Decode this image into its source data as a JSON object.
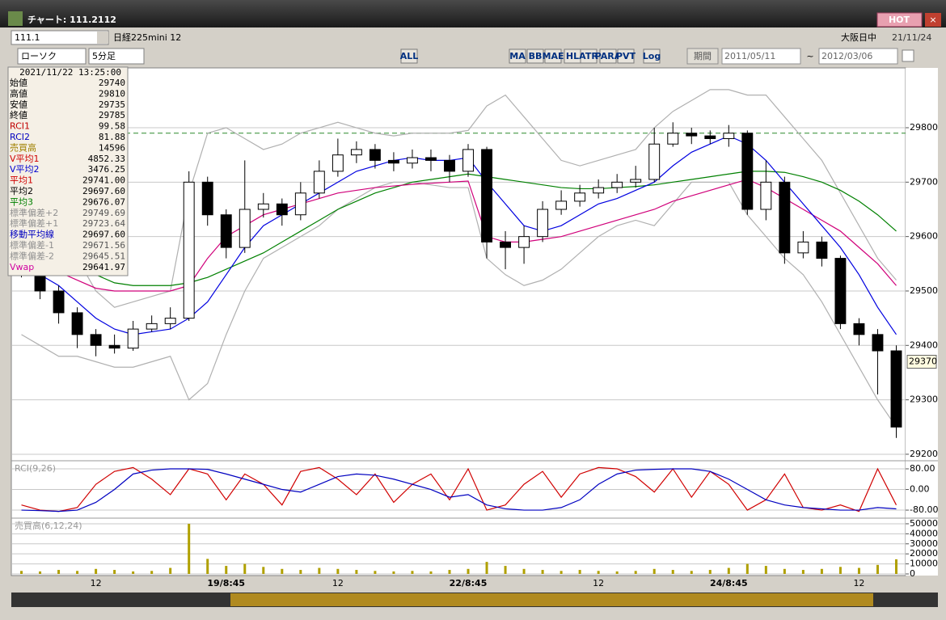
{
  "window": {
    "title": "チャート: 111.2112",
    "hot": "HOT",
    "symbol_code": "111.1",
    "symbol_name": "日経225mini 12",
    "market": "大阪日中",
    "date": "21/11/24"
  },
  "toolbar": {
    "chart_style": "ローソク",
    "interval": "5分足",
    "indicator_buttons": [
      "ALL",
      "MA",
      "BB",
      "MAE",
      "HL",
      "ATR",
      "PARA",
      "PVT",
      "Log"
    ],
    "period_label": "期間",
    "start_date": "2011/05/11",
    "separator": "~",
    "end_date": "2012/03/06"
  },
  "info_panel": {
    "timestamp": "2021/11/22 13:25:00",
    "rows": [
      {
        "label": "始値",
        "value": "29740",
        "color": "#000000"
      },
      {
        "label": "高値",
        "value": "29810",
        "color": "#000000"
      },
      {
        "label": "安値",
        "value": "29735",
        "color": "#000000"
      },
      {
        "label": "終値",
        "value": "29785",
        "color": "#000000"
      },
      {
        "label": "RCI1",
        "value": "99.58",
        "color": "#c00000"
      },
      {
        "label": "RCI2",
        "value": "81.88",
        "color": "#0000c0"
      },
      {
        "label": "売買高",
        "value": "14596",
        "color": "#a08000"
      },
      {
        "label": "V平均1",
        "value": "4852.33",
        "color": "#d00000"
      },
      {
        "label": "V平均2",
        "value": "3476.25",
        "color": "#0000d0"
      },
      {
        "label": "平均1",
        "value": "29741.00",
        "color": "#d00000"
      },
      {
        "label": "平均2",
        "value": "29697.60",
        "color": "#000000"
      },
      {
        "label": "平均3",
        "value": "29676.07",
        "color": "#008000"
      },
      {
        "label": "標準偏差+2",
        "value": "29749.69",
        "color": "#909090"
      },
      {
        "label": "標準偏差+1",
        "value": "29723.64",
        "color": "#909090"
      },
      {
        "label": "移動平均線",
        "value": "29697.60",
        "color": "#0000c0"
      },
      {
        "label": "標準偏差-1",
        "value": "29671.56",
        "color": "#909090"
      },
      {
        "label": "標準偏差-2",
        "value": "29645.51",
        "color": "#909090"
      },
      {
        "label": "Vwap",
        "value": "29641.97",
        "color": "#d000a0"
      }
    ]
  },
  "chart_data": [
    {
      "type": "candlestick",
      "categories": [
        null,
        null,
        null,
        null,
        "12",
        null,
        null,
        null,
        null,
        null,
        null,
        "19/8:45",
        null,
        null,
        null,
        null,
        null,
        "12",
        null,
        null,
        null,
        null,
        null,
        null,
        "22/8:45",
        null,
        null,
        null,
        null,
        null,
        null,
        "12",
        null,
        null,
        null,
        null,
        null,
        null,
        "24/8:45",
        null,
        null,
        null,
        null,
        null,
        null,
        "12",
        null,
        null
      ],
      "open": [
        29560,
        29540,
        29500,
        29460,
        29420,
        29400,
        29395,
        29430,
        29440,
        29450,
        29700,
        29640,
        29580,
        29650,
        29660,
        29640,
        29680,
        29720,
        29750,
        29760,
        29740,
        29735,
        29745,
        29740,
        29720,
        29760,
        29590,
        29580,
        29600,
        29650,
        29665,
        29680,
        29690,
        29700,
        29705,
        29770,
        29790,
        29785,
        29780,
        29790,
        29650,
        29700,
        29570,
        29590,
        29560,
        29440,
        29420,
        29390
      ],
      "high": [
        29575,
        29555,
        29510,
        29470,
        29430,
        29420,
        29445,
        29455,
        29470,
        29720,
        29710,
        29650,
        29740,
        29680,
        29670,
        29700,
        29740,
        29780,
        29775,
        29770,
        29755,
        29760,
        29760,
        29750,
        29770,
        29765,
        29610,
        29620,
        29665,
        29685,
        29695,
        29705,
        29715,
        29730,
        29800,
        29810,
        29800,
        29795,
        29805,
        29795,
        29740,
        29710,
        29610,
        29600,
        29565,
        29450,
        29430,
        29400
      ],
      "low": [
        29525,
        29485,
        29440,
        29395,
        29380,
        29385,
        29390,
        29425,
        29430,
        29445,
        29620,
        29560,
        29570,
        29635,
        29620,
        29630,
        29670,
        29710,
        29735,
        29725,
        29720,
        29725,
        29720,
        29700,
        29710,
        29560,
        29540,
        29550,
        29590,
        29640,
        29655,
        29670,
        29680,
        29690,
        29700,
        29765,
        29770,
        29770,
        29765,
        29640,
        29630,
        29550,
        29560,
        29545,
        29430,
        29400,
        29310,
        29230
      ],
      "close": [
        29540,
        29500,
        29460,
        29420,
        29400,
        29395,
        29430,
        29440,
        29450,
        29700,
        29640,
        29580,
        29650,
        29660,
        29640,
        29680,
        29720,
        29750,
        29760,
        29740,
        29735,
        29745,
        29740,
        29720,
        29760,
        29590,
        29580,
        29600,
        29650,
        29665,
        29680,
        29690,
        29700,
        29705,
        29770,
        29790,
        29785,
        29780,
        29790,
        29650,
        29700,
        29570,
        29590,
        29560,
        29440,
        29420,
        29390,
        29250
      ],
      "up_color": "#ffffff",
      "down_color": "#000000",
      "series": [
        {
          "color": "#b0b0b0",
          "values": [
            29680,
            29650,
            29620,
            29560,
            29500,
            29470,
            29480,
            29490,
            29500,
            29680,
            29790,
            29800,
            29780,
            29760,
            29770,
            29790,
            29800,
            29810,
            29800,
            29790,
            29785,
            29790,
            29790,
            29790,
            29795,
            29840,
            29860,
            29820,
            29780,
            29740,
            29730,
            29740,
            29750,
            29760,
            29800,
            29830,
            29850,
            29870,
            29870,
            29860,
            29860,
            29820,
            29780,
            29740,
            29680,
            29620,
            29560,
            29520
          ]
        },
        {
          "color": "#b0b0b0",
          "values": [
            29420,
            29400,
            29380,
            29380,
            29370,
            29360,
            29360,
            29370,
            29380,
            29300,
            29330,
            29420,
            29500,
            29560,
            29580,
            29600,
            29620,
            29650,
            29670,
            29690,
            29700,
            29700,
            29695,
            29690,
            29690,
            29560,
            29530,
            29510,
            29520,
            29540,
            29570,
            29600,
            29620,
            29630,
            29620,
            29660,
            29700,
            29700,
            29700,
            29640,
            29600,
            29560,
            29530,
            29480,
            29420,
            29360,
            29300,
            29250
          ]
        },
        {
          "color": "#008000",
          "values": [
            29600,
            29590,
            29570,
            29550,
            29530,
            29515,
            29510,
            29510,
            29510,
            29515,
            29525,
            29540,
            29555,
            29570,
            29590,
            29610,
            29630,
            29650,
            29665,
            29680,
            29690,
            29700,
            29705,
            29710,
            29715,
            29710,
            29705,
            29700,
            29695,
            29690,
            29688,
            29688,
            29690,
            29692,
            29695,
            29700,
            29705,
            29710,
            29715,
            29720,
            29720,
            29718,
            29710,
            29700,
            29685,
            29665,
            29640,
            29610
          ]
        },
        {
          "color": "#d0007a",
          "values": [
            29560,
            29550,
            29535,
            29520,
            29505,
            29500,
            29500,
            29500,
            29500,
            29510,
            29560,
            29600,
            29620,
            29640,
            29650,
            29660,
            29670,
            29680,
            29685,
            29690,
            29693,
            29696,
            29698,
            29700,
            29702,
            29600,
            29590,
            29590,
            29595,
            29600,
            29610,
            29620,
            29630,
            29640,
            29650,
            29665,
            29675,
            29685,
            29695,
            29705,
            29690,
            29670,
            29650,
            29630,
            29610,
            29580,
            29550,
            29510
          ]
        },
        {
          "color": "#0000e0",
          "values": [
            29550,
            29530,
            29510,
            29480,
            29450,
            29430,
            29420,
            29425,
            29430,
            29450,
            29480,
            29530,
            29580,
            29620,
            29640,
            29660,
            29680,
            29700,
            29720,
            29730,
            29740,
            29745,
            29740,
            29740,
            29745,
            29700,
            29660,
            29620,
            29610,
            29620,
            29640,
            29660,
            29670,
            29685,
            29700,
            29730,
            29755,
            29770,
            29785,
            29770,
            29740,
            29700,
            29660,
            29620,
            29580,
            29530,
            29470,
            29420
          ]
        }
      ],
      "ylim": [
        29191,
        29904
      ],
      "yticks": [
        29200,
        29300,
        29400,
        29500,
        29600,
        29700,
        29800
      ],
      "ref_line": 29790,
      "last_price": 29370
    },
    {
      "type": "line",
      "title": "RCI(9,26)",
      "series": [
        {
          "color": "#d00000",
          "values": [
            -60,
            -80,
            -85,
            -70,
            20,
            70,
            85,
            40,
            -20,
            80,
            60,
            -40,
            60,
            20,
            -60,
            70,
            85,
            40,
            -20,
            60,
            -50,
            20,
            60,
            -40,
            80,
            -80,
            -60,
            20,
            70,
            -30,
            60,
            85,
            80,
            50,
            -10,
            80,
            -30,
            70,
            20,
            -80,
            -40,
            60,
            -70,
            -80,
            -60,
            -85,
            80,
            -60
          ]
        },
        {
          "color": "#0000c0",
          "values": [
            -80,
            -82,
            -85,
            -80,
            -50,
            0,
            60,
            75,
            80,
            80,
            78,
            60,
            40,
            20,
            0,
            -10,
            20,
            50,
            60,
            55,
            40,
            20,
            0,
            -30,
            -20,
            -60,
            -75,
            -80,
            -80,
            -70,
            -40,
            20,
            60,
            75,
            78,
            80,
            80,
            70,
            40,
            0,
            -40,
            -60,
            -70,
            -75,
            -80,
            -80,
            -70,
            -75
          ]
        }
      ],
      "ylim": [
        -108,
        105
      ],
      "yticks": [
        {
          "value": 80,
          "label": "80.00"
        },
        {
          "value": 0,
          "label": "0.00"
        },
        {
          "value": -80,
          "label": "-80.00"
        }
      ]
    },
    {
      "type": "bar",
      "title": "売買高(6,12,24)",
      "color": "#b0a000",
      "values": [
        3000,
        2500,
        4000,
        3000,
        5000,
        4000,
        2500,
        3000,
        6000,
        50000,
        15000,
        8000,
        10000,
        7000,
        5000,
        4000,
        6000,
        5000,
        4000,
        3000,
        2500,
        3000,
        2500,
        4000,
        5000,
        12000,
        8000,
        5000,
        4000,
        3000,
        4000,
        3000,
        2500,
        3000,
        5000,
        4000,
        3000,
        4000,
        6000,
        10000,
        8000,
        5000,
        4000,
        5000,
        7000,
        6000,
        9000,
        14596
      ],
      "ylim": [
        0,
        54000
      ],
      "yticks": [
        0,
        10000,
        20000,
        30000,
        40000,
        50000
      ]
    }
  ]
}
